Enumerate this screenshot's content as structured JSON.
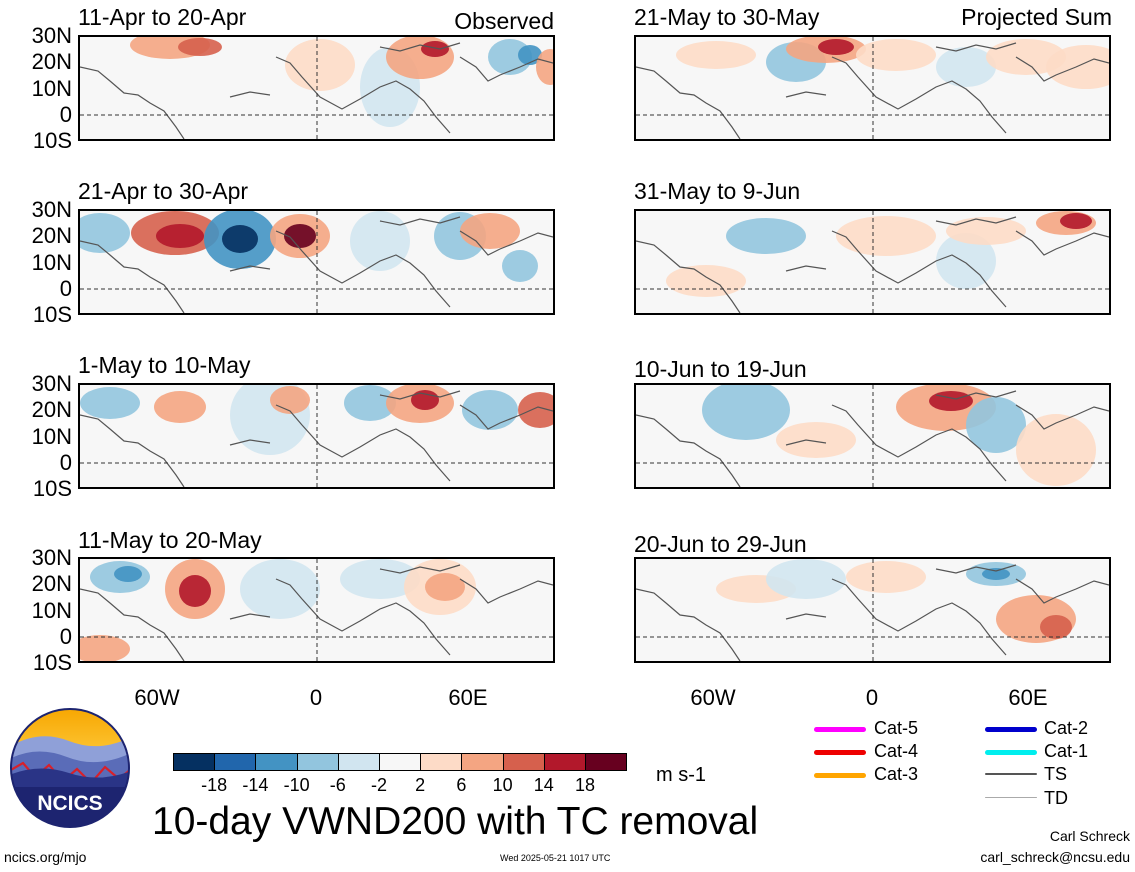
{
  "header": {
    "observed_label": "Observed",
    "projected_label": "Projected Sum"
  },
  "panels_left": [
    {
      "title": "11-Apr to 20-Apr"
    },
    {
      "title": "21-Apr to 30-Apr"
    },
    {
      "title": "1-May to 10-May"
    },
    {
      "title": "11-May to 20-May"
    }
  ],
  "panels_right": [
    {
      "title": "21-May to 30-May"
    },
    {
      "title": "31-May to 9-Jun"
    },
    {
      "title": "10-Jun to 19-Jun"
    },
    {
      "title": "20-Jun to 29-Jun"
    }
  ],
  "lat_labels": [
    "30N",
    "20N",
    "10N",
    "0",
    "10S"
  ],
  "lon_labels": [
    "60W",
    "0",
    "60E"
  ],
  "colorbar": {
    "colors": [
      "#053061",
      "#2166ac",
      "#4393c3",
      "#92c5de",
      "#d1e5f0",
      "#f7f7f7",
      "#fddbc7",
      "#f4a582",
      "#d6604d",
      "#b2182b",
      "#67001f"
    ],
    "labels": [
      "-18",
      "-14",
      "-10",
      "-6",
      "-2",
      "2",
      "6",
      "10",
      "14",
      "18"
    ],
    "units": "m s-1"
  },
  "tc_legend": [
    {
      "label": "Cat-5",
      "color": "#ff00ff"
    },
    {
      "label": "Cat-4",
      "color": "#ee0000"
    },
    {
      "label": "Cat-3",
      "color": "#ffa500"
    },
    {
      "label": "Cat-2",
      "color": "#0000cc"
    },
    {
      "label": "Cat-1",
      "color": "#00eeee"
    },
    {
      "label": "TS",
      "color": "#555555"
    },
    {
      "label": "TD",
      "color": "#aaaaaa"
    }
  ],
  "footer": {
    "main_title": "10-day VWND200 with TC removal",
    "logo_text": "NCICS",
    "url": "ncics.org/mjo",
    "timestamp": "Wed 2025-05-21 1017 UTC",
    "author": "Carl Schreck",
    "email": "carl_schreck@ncsu.edu"
  }
}
